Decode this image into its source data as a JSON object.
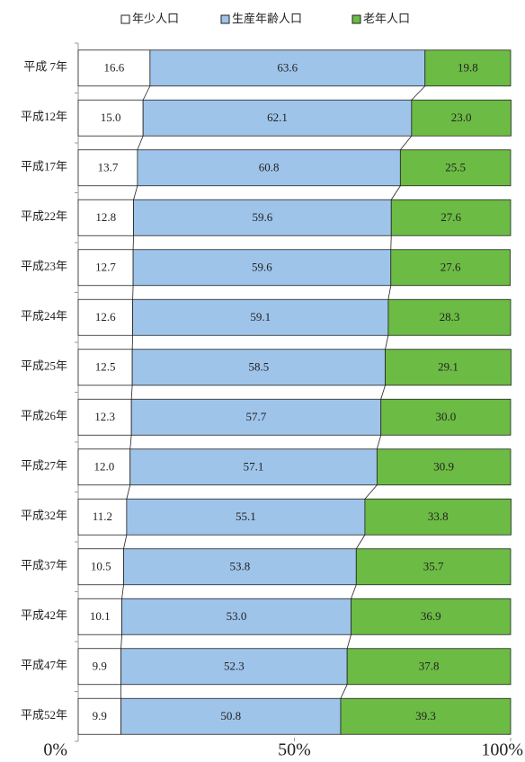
{
  "chart_data": {
    "type": "stacked-bar-horizontal",
    "categories": [
      "平成 7年",
      "平成12年",
      "平成17年",
      "平成22年",
      "平成23年",
      "平成24年",
      "平成25年",
      "平成26年",
      "平成27年",
      "平成32年",
      "平成37年",
      "平成42年",
      "平成47年",
      "平成52年"
    ],
    "series": [
      {
        "name": "年少人口",
        "color": "#ffffff",
        "values": [
          16.6,
          15.0,
          13.7,
          12.8,
          12.7,
          12.6,
          12.5,
          12.3,
          12.0,
          11.2,
          10.5,
          10.1,
          9.9,
          9.9
        ],
        "value_labels": [
          "16.6",
          "15.0",
          "13.7",
          "12.8",
          "12.7",
          "12.6",
          "12.5",
          "12.3",
          "12.0",
          "11.2",
          "10.5",
          "10.1",
          "9.9",
          "9.9"
        ]
      },
      {
        "name": "生産年齢人口",
        "color": "#9fc4ea",
        "values": [
          63.6,
          62.1,
          60.8,
          59.6,
          59.6,
          59.1,
          58.5,
          57.7,
          57.1,
          55.1,
          53.8,
          53.0,
          52.3,
          50.8
        ],
        "value_labels": [
          "63.6",
          "62.1",
          "60.8",
          "59.6",
          "59.6",
          "59.1",
          "58.5",
          "57.7",
          "57.1",
          "55.1",
          "53.8",
          "53.0",
          "52.3",
          "50.8"
        ]
      },
      {
        "name": "老年人口",
        "color": "#6cbb44",
        "values": [
          19.8,
          23.0,
          25.5,
          27.6,
          27.6,
          28.3,
          29.1,
          30.0,
          30.9,
          33.8,
          35.7,
          36.9,
          37.8,
          39.3
        ],
        "value_labels": [
          "19.8",
          "23.0",
          "25.5",
          "27.6",
          "27.6",
          "28.3",
          "29.1",
          "30.0",
          "30.9",
          "33.8",
          "35.7",
          "36.9",
          "37.8",
          "39.3"
        ]
      }
    ],
    "xlim": [
      0,
      100
    ],
    "xticks": [
      {
        "value": 0,
        "label": "0%"
      },
      {
        "value": 50,
        "label": "50%"
      },
      {
        "value": 100,
        "label": "100%"
      }
    ],
    "legend": "top"
  }
}
